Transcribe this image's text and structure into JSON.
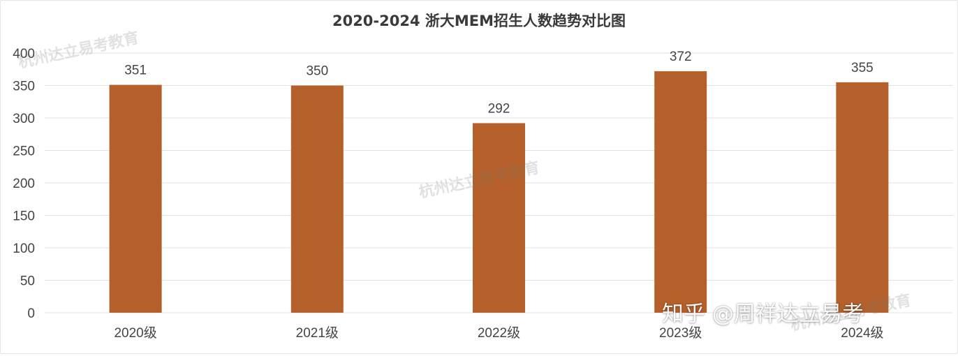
{
  "chart_data": {
    "type": "bar",
    "title": "2020-2024 浙大MEM招生人数趋势对比图",
    "categories": [
      "2020级",
      "2021级",
      "2022级",
      "2023级",
      "2024级"
    ],
    "values": [
      351,
      350,
      292,
      372,
      355
    ],
    "ylim": [
      0,
      400
    ],
    "yticks": [
      0,
      50,
      100,
      150,
      200,
      250,
      300,
      350,
      400
    ],
    "grid": true,
    "bar_color": "#b5602a",
    "grid_color": "#e2e2e2",
    "label_color": "#444444"
  },
  "watermarks": {
    "brand": "杭州达立易考教育",
    "zhihu": "知乎 @周祥达立易考"
  }
}
